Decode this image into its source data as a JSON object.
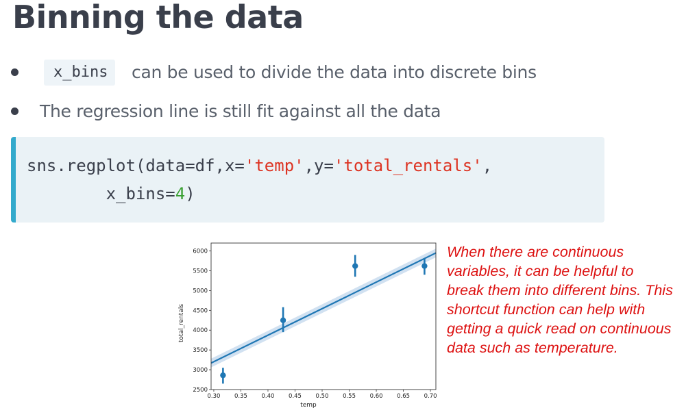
{
  "slide": {
    "title": "Binning the data"
  },
  "bullets": [
    {
      "code": "x_bins",
      "text": "can be used to divide the data into discrete bins"
    },
    {
      "text": "The regression line is still fit against all the data"
    }
  ],
  "code_block": {
    "tokens_line1": [
      {
        "text": "sns.regplot(data=df,x=",
        "kind": "plain"
      },
      {
        "text": "'temp'",
        "kind": "string"
      },
      {
        "text": ",y=",
        "kind": "plain"
      },
      {
        "text": "'total_rentals'",
        "kind": "string"
      },
      {
        "text": ",",
        "kind": "plain"
      }
    ],
    "tokens_line2": [
      {
        "text": "        x_bins=",
        "kind": "plain"
      },
      {
        "text": "4",
        "kind": "number"
      },
      {
        "text": ")",
        "kind": "plain"
      }
    ],
    "accent_color": "#33aacc",
    "string_color": "#dd3322",
    "number_color": "#3aa033"
  },
  "note": {
    "text": "When there are continuous variables, it can be helpful to break them into different bins. This shortcut function can help with getting a quick read on continuous data such as temperature.",
    "color": "#dd1111"
  },
  "chart_data": {
    "type": "scatter",
    "xlabel": "temp",
    "ylabel": "total_rentals",
    "xlim": [
      0.295,
      0.71
    ],
    "ylim": [
      2500,
      6200
    ],
    "xticks": [
      0.3,
      0.35,
      0.4,
      0.45,
      0.5,
      0.55,
      0.6,
      0.65,
      0.7
    ],
    "xtick_labels": [
      "0.30",
      "0.35",
      "0.40",
      "0.45",
      "0.50",
      "0.55",
      "0.60",
      "0.65",
      "0.70"
    ],
    "yticks": [
      2500,
      3000,
      3500,
      4000,
      4500,
      5000,
      5500,
      6000
    ],
    "ytick_labels": [
      "2500",
      "3000",
      "3500",
      "4000",
      "4500",
      "5000",
      "5500",
      "6000"
    ],
    "grid": false,
    "points": [
      {
        "x": 0.317,
        "y": 2860,
        "err_low": 2650,
        "err_high": 3050
      },
      {
        "x": 0.428,
        "y": 4250,
        "err_low": 3950,
        "err_high": 4580
      },
      {
        "x": 0.561,
        "y": 5620,
        "err_low": 5350,
        "err_high": 5900
      },
      {
        "x": 0.689,
        "y": 5620,
        "err_low": 5400,
        "err_high": 5800
      }
    ],
    "regression": {
      "x": [
        0.295,
        0.71
      ],
      "y": [
        3170,
        5950
      ],
      "ci_half_width": 110
    },
    "color": "#1f77b4",
    "ci_color": "#c9dcef"
  }
}
